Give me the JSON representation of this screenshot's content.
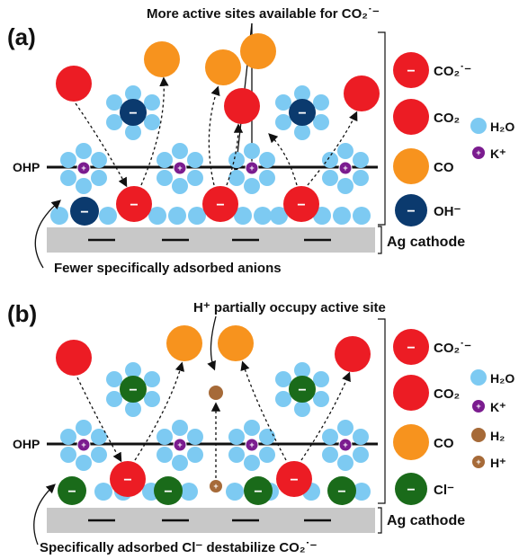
{
  "panel_a": {
    "label": "(a)",
    "top_note": "More active sites available for CO₂˙⁻",
    "ohp": "OHP",
    "electrode": "Ag cathode",
    "bottom_note": "Fewer specifically adsorbed anions",
    "legend": [
      {
        "label": "CO₂˙⁻",
        "glyph": "−"
      },
      {
        "label": "CO₂"
      },
      {
        "label": "CO"
      },
      {
        "label": "OH⁻",
        "glyph": "−"
      }
    ],
    "legend_small": [
      {
        "label": "H₂O"
      },
      {
        "label": "K⁺",
        "glyph": "+"
      }
    ]
  },
  "panel_b": {
    "label": "(b)",
    "top_note": "H⁺ partially occupy active site",
    "ohp": "OHP",
    "electrode": "Ag cathode",
    "bottom_note": "Specifically adsorbed Cl⁻ destabilize CO₂˙⁻",
    "legend": [
      {
        "label": "CO₂˙⁻",
        "glyph": "−"
      },
      {
        "label": "CO₂"
      },
      {
        "label": "CO"
      },
      {
        "label": "Cl⁻",
        "glyph": "−"
      }
    ],
    "legend_small": [
      {
        "label": "H₂O"
      },
      {
        "label": "K⁺",
        "glyph": "+"
      },
      {
        "label": "H₂"
      },
      {
        "label": "H⁺",
        "glyph": "+"
      }
    ]
  },
  "colors": {
    "co2_radical": "#ec1c24",
    "co2": "#ec1c24",
    "co": "#f7931e",
    "oh": "#0b3a6e",
    "cl": "#1a6b1a",
    "water": "#7dcaf2",
    "potassium": "#7b1c8f",
    "hydrogen": "#a66a38",
    "electrode": "#c8c8c8"
  },
  "icons": [
    "co2-radical-icon",
    "co2-icon",
    "co-icon",
    "oh-icon",
    "cl-icon",
    "water-icon",
    "potassium-icon",
    "hydrogen-icon",
    "proton-icon"
  ]
}
